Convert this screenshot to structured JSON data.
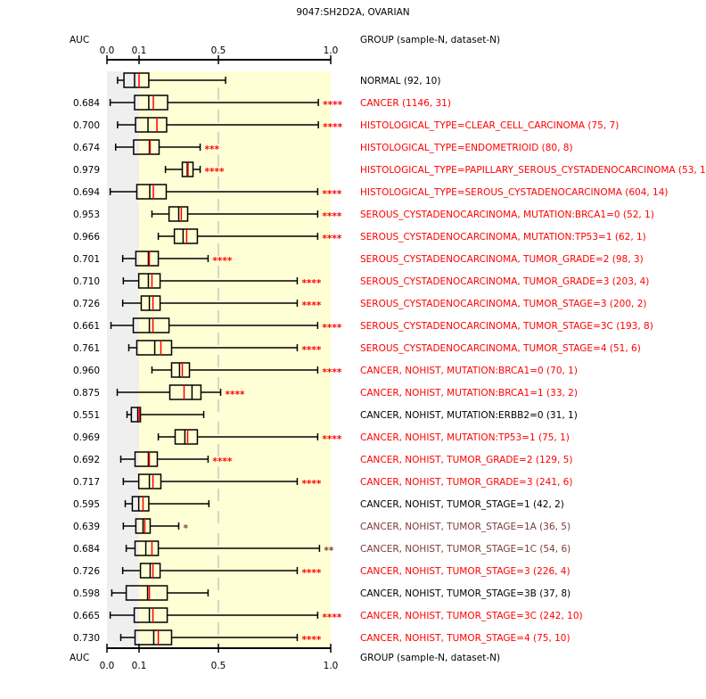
{
  "chart_data": {
    "type": "boxplot",
    "title": "9047:SH2D2A, OVARIAN",
    "left_header": "AUC",
    "right_header": "GROUP (sample-N, dataset-N)",
    "x_ticks": [
      0.0,
      0.1,
      0.5,
      1.0
    ],
    "x_tick_labels": [
      "0.0",
      "0.1",
      "0.5",
      "1.0"
    ],
    "xlim": [
      0.0,
      1.0
    ],
    "reference_line": 0.5,
    "colors": {
      "significant": "#ff0000",
      "weak": "#7b3a3a",
      "none": "#000000",
      "box_fill": "#ffffd5",
      "low_region": "#efefef",
      "mean_line": "#ff0000"
    },
    "rows": [
      {
        "label": "NORMAL (92, 10)",
        "auc": "",
        "stars": "",
        "color": "none",
        "whisker_low": 0.033,
        "q1": 0.053,
        "median": 0.086,
        "mean": 0.1,
        "q3": 0.149,
        "whisker_high": 0.532
      },
      {
        "label": "CANCER (1146, 31)",
        "auc": "0.684",
        "stars": "****",
        "color": "significant",
        "whisker_low": 0.01,
        "q1": 0.086,
        "median": 0.149,
        "mean": 0.172,
        "q3": 0.244,
        "whisker_high": 0.945
      },
      {
        "label": "HISTOLOGICAL_TYPE=CLEAR_CELL_CARCINOMA (75, 7)",
        "auc": "0.700",
        "stars": "****",
        "color": "significant",
        "whisker_low": 0.033,
        "q1": 0.089,
        "median": 0.145,
        "mean": 0.19,
        "q3": 0.239,
        "whisker_high": 0.945
      },
      {
        "label": "HISTOLOGICAL_TYPE=ENDOMETRIOID (80, 8)",
        "auc": "0.674",
        "stars": "***",
        "color": "significant",
        "whisker_low": 0.027,
        "q1": 0.083,
        "median": 0.152,
        "mean": 0.156,
        "q3": 0.201,
        "whisker_high": 0.408
      },
      {
        "label": "HISTOLOGICAL_TYPE=PAPILLARY_SEROUS_CYSTADENOCARCINOMA (53, 1)",
        "auc": "0.979",
        "stars": "****",
        "color": "significant",
        "whisker_low": 0.233,
        "q1": 0.318,
        "median": 0.343,
        "mean": 0.347,
        "q3": 0.372,
        "whisker_high": 0.408
      },
      {
        "label": "HISTOLOGICAL_TYPE=SEROUS_CYSTADENOCARCINOMA (604, 14)",
        "auc": "0.694",
        "stars": "****",
        "color": "significant",
        "whisker_low": 0.01,
        "q1": 0.093,
        "median": 0.154,
        "mean": 0.172,
        "q3": 0.237,
        "whisker_high": 0.942
      },
      {
        "label": "SEROUS_CYSTADENOCARCINOMA, MUTATION:BRCA1=0 (52, 1)",
        "auc": "0.953",
        "stars": "****",
        "color": "significant",
        "whisker_low": 0.165,
        "q1": 0.251,
        "median": 0.3,
        "mean": 0.313,
        "q3": 0.345,
        "whisker_high": 0.942
      },
      {
        "label": "SEROUS_CYSTADENOCARCINOMA, MUTATION:TP53=1 (62, 1)",
        "auc": "0.966",
        "stars": "****",
        "color": "significant",
        "whisker_low": 0.197,
        "q1": 0.278,
        "median": 0.322,
        "mean": 0.34,
        "q3": 0.394,
        "whisker_high": 0.942
      },
      {
        "label": "SEROUS_CYSTADENOCARCINOMA, TUMOR_GRADE=2 (98, 3)",
        "auc": "0.701",
        "stars": "****",
        "color": "significant",
        "whisker_low": 0.049,
        "q1": 0.09,
        "median": 0.147,
        "mean": 0.152,
        "q3": 0.197,
        "whisker_high": 0.448
      },
      {
        "label": "SEROUS_CYSTADENOCARCINOMA, TUMOR_GRADE=3 (203, 4)",
        "auc": "0.710",
        "stars": "****",
        "color": "significant",
        "whisker_low": 0.051,
        "q1": 0.099,
        "median": 0.147,
        "mean": 0.165,
        "q3": 0.206,
        "whisker_high": 0.851
      },
      {
        "label": "SEROUS_CYSTADENOCARCINOMA, TUMOR_STAGE=3 (200, 2)",
        "auc": "0.726",
        "stars": "****",
        "color": "significant",
        "whisker_low": 0.049,
        "q1": 0.111,
        "median": 0.152,
        "mean": 0.17,
        "q3": 0.206,
        "whisker_high": 0.851
      },
      {
        "label": "SEROUS_CYSTADENOCARCINOMA, TUMOR_STAGE=3C (193, 8)",
        "auc": "0.661",
        "stars": "****",
        "color": "significant",
        "whisker_low": 0.0125,
        "q1": 0.082,
        "median": 0.152,
        "mean": 0.17,
        "q3": 0.251,
        "whisker_high": 0.942
      },
      {
        "label": "SEROUS_CYSTADENOCARCINOMA, TUMOR_STAGE=4 (51, 6)",
        "auc": "0.761",
        "stars": "****",
        "color": "significant",
        "whisker_low": 0.068,
        "q1": 0.093,
        "median": 0.179,
        "mean": 0.21,
        "q3": 0.264,
        "whisker_high": 0.851
      },
      {
        "label": "CANCER, NOHIST, MUTATION:BRCA1=0 (70, 1)",
        "auc": "0.960",
        "stars": "****",
        "color": "significant",
        "whisker_low": 0.165,
        "q1": 0.264,
        "median": 0.304,
        "mean": 0.318,
        "q3": 0.354,
        "whisker_high": 0.942
      },
      {
        "label": "CANCER, NOHIST, MUTATION:BRCA1=1 (33, 2)",
        "auc": "0.875",
        "stars": "****",
        "color": "significant",
        "whisker_low": 0.032,
        "q1": 0.255,
        "median": 0.367,
        "mean": 0.327,
        "q3": 0.412,
        "whisker_high": 0.51
      },
      {
        "label": "CANCER, NOHIST, MUTATION:ERBB2=0 (31, 1)",
        "auc": "0.551",
        "stars": "",
        "color": "none",
        "whisker_low": 0.0625,
        "q1": 0.076,
        "median": 0.096,
        "mean": 0.102,
        "q3": 0.107,
        "whisker_high": 0.426
      },
      {
        "label": "CANCER, NOHIST, MUTATION:TP53=1 (75, 1)",
        "auc": "0.969",
        "stars": "****",
        "color": "significant",
        "whisker_low": 0.197,
        "q1": 0.282,
        "median": 0.331,
        "mean": 0.345,
        "q3": 0.394,
        "whisker_high": 0.942
      },
      {
        "label": "CANCER, NOHIST, TUMOR_GRADE=2 (129, 5)",
        "auc": "0.692",
        "stars": "****",
        "color": "significant",
        "whisker_low": 0.043,
        "q1": 0.0875,
        "median": 0.147,
        "mean": 0.152,
        "q3": 0.192,
        "whisker_high": 0.448
      },
      {
        "label": "CANCER, NOHIST, TUMOR_GRADE=3 (241, 6)",
        "auc": "0.717",
        "stars": "****",
        "color": "significant",
        "whisker_low": 0.051,
        "q1": 0.099,
        "median": 0.152,
        "mean": 0.17,
        "q3": 0.21,
        "whisker_high": 0.851
      },
      {
        "label": "CANCER, NOHIST, TUMOR_STAGE=1 (42, 2)",
        "auc": "0.595",
        "stars": "",
        "color": "none",
        "whisker_low": 0.057,
        "q1": 0.079,
        "median": 0.099,
        "mean": 0.12,
        "q3": 0.149,
        "whisker_high": 0.452
      },
      {
        "label": "CANCER, NOHIST, TUMOR_STAGE=1A (36, 5)",
        "auc": "0.639",
        "stars": "*",
        "color": "weak",
        "whisker_low": 0.051,
        "q1": 0.09,
        "median": 0.12,
        "mean": 0.129,
        "q3": 0.156,
        "whisker_high": 0.3
      },
      {
        "label": "CANCER, NOHIST, TUMOR_STAGE=1C (54, 6)",
        "auc": "0.684",
        "stars": "**",
        "color": "weak",
        "whisker_low": 0.06,
        "q1": 0.0875,
        "median": 0.134,
        "mean": 0.165,
        "q3": 0.197,
        "whisker_high": 0.95
      },
      {
        "label": "CANCER, NOHIST, TUMOR_STAGE=3 (226, 4)",
        "auc": "0.726",
        "stars": "****",
        "color": "significant",
        "whisker_low": 0.049,
        "q1": 0.107,
        "median": 0.156,
        "mean": 0.17,
        "q3": 0.206,
        "whisker_high": 0.851
      },
      {
        "label": "CANCER, NOHIST, TUMOR_STAGE=3B (37, 8)",
        "auc": "0.598",
        "stars": "",
        "color": "none",
        "whisker_low": 0.015,
        "q1": 0.06,
        "median": 0.143,
        "mean": 0.152,
        "q3": 0.242,
        "whisker_high": 0.448
      },
      {
        "label": "CANCER, NOHIST, TUMOR_STAGE=3C (242, 10)",
        "auc": "0.665",
        "stars": "****",
        "color": "significant",
        "whisker_low": 0.01,
        "q1": 0.085,
        "median": 0.152,
        "mean": 0.17,
        "q3": 0.242,
        "whisker_high": 0.942
      },
      {
        "label": "CANCER, NOHIST, TUMOR_STAGE=4 (75, 10)",
        "auc": "0.730",
        "stars": "****",
        "color": "significant",
        "whisker_low": 0.043,
        "q1": 0.0875,
        "median": 0.174,
        "mean": 0.197,
        "q3": 0.264,
        "whisker_high": 0.851
      }
    ]
  }
}
